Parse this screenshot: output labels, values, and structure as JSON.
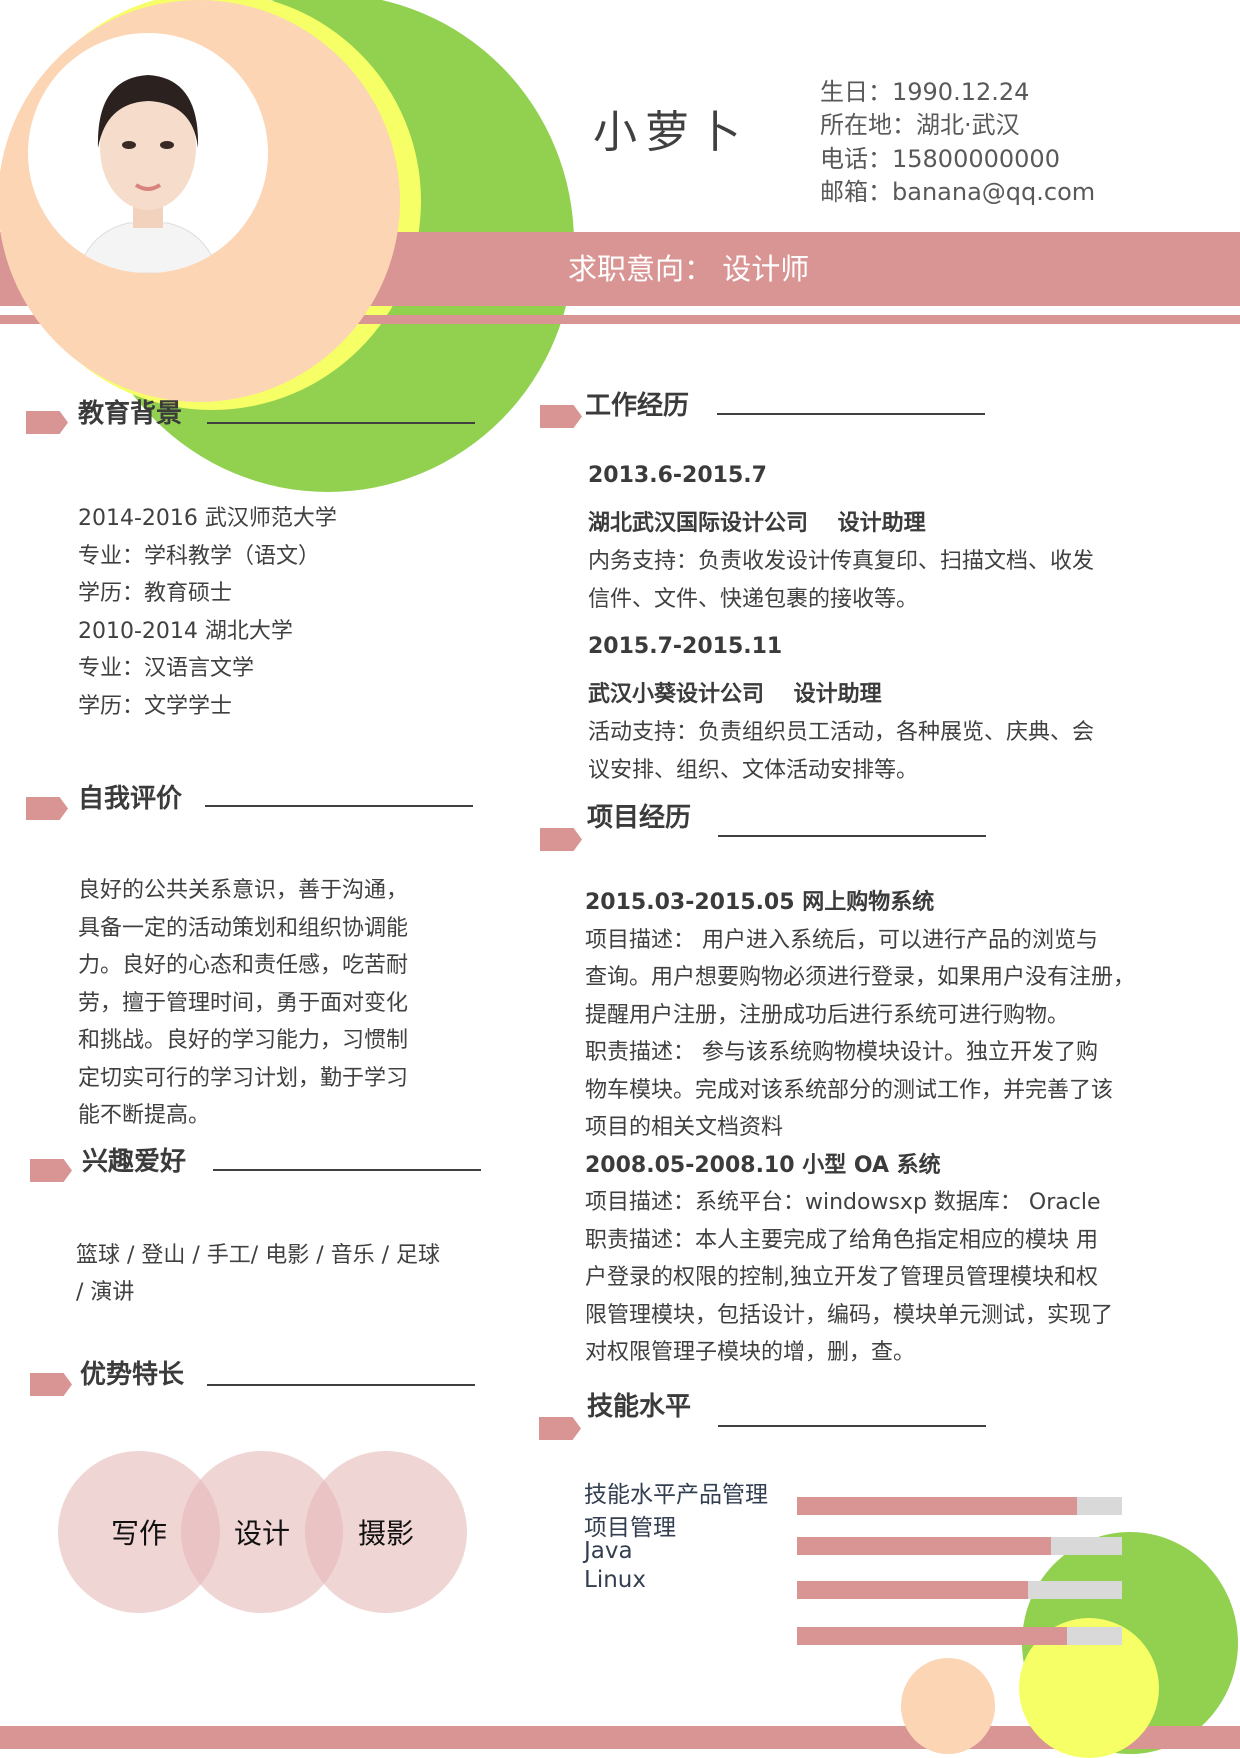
{
  "colors": {
    "accent": "#d99594",
    "green": "#92d050",
    "yellow": "#f6ff66",
    "peach": "#fcd5b4",
    "bar_bg": "#d9d9d9"
  },
  "header": {
    "name": "小萝卜",
    "info": [
      "生日：1990.12.24",
      "所在地：湖北·武汉",
      "电话：15800000000",
      "邮箱：banana@qq.com"
    ],
    "objective": "求职意向： 设计师"
  },
  "education": {
    "title": "教育背景",
    "lines": [
      "2014-2016 武汉师范大学",
      "专业：学科教学（语文）",
      "学历：教育硕士",
      "2010-2014 湖北大学",
      "专业：汉语言文学",
      "学历：文学学士"
    ]
  },
  "self_eval": {
    "title": "自我评价",
    "lines": [
      "良好的公共关系意识，善于沟通，",
      "具备一定的活动策划和组织协调能",
      "力。良好的心态和责任感，吃苦耐",
      "劳，擅于管理时间，勇于面对变化",
      "和挑战。良好的学习能力，习惯制",
      "定切实可行的学习计划，勤于学习",
      "能不断提高。"
    ]
  },
  "hobbies": {
    "title": "兴趣爱好",
    "lines": [
      "篮球 / 登山 / 手工/ 电影 / 音乐 / 足球",
      "/ 演讲"
    ]
  },
  "strengths": {
    "title": "优势特长",
    "items": [
      "写作",
      "设计",
      "摄影"
    ]
  },
  "work": {
    "title": "工作经历",
    "jobs": [
      {
        "period": "2013.6-2015.7",
        "company": "湖北武汉国际设计公司　 设计助理",
        "desc": [
          "内务支持：负责收发设计传真复印、扫描文档、收发",
          "信件、文件、快递包裹的接收等。"
        ]
      },
      {
        "period": "2015.7-2015.11",
        "company": "武汉小葵设计公司　 设计助理",
        "desc": [
          "活动支持：负责组织员工活动，各种展览、庆典、会",
          "议安排、组织、文体活动安排等。"
        ]
      }
    ]
  },
  "projects": {
    "title": "项目经历",
    "lines": [
      {
        "text": "2015.03-2015.05 网上购物系统",
        "bold": true
      },
      {
        "text": "项目描述： 用户进入系统后，可以进行产品的浏览与"
      },
      {
        "text": "查询。用户想要购物必须进行登录，如果用户没有注册，"
      },
      {
        "text": "提醒用户注册，注册成功后进行系统可进行购物。"
      },
      {
        "text": "职责描述： 参与该系统购物模块设计。独立开发了购"
      },
      {
        "text": "物车模块。完成对该系统部分的测试工作，并完善了该"
      },
      {
        "text": "项目的相关文档资料"
      },
      {
        "text": "2008.05-2008.10 小型 OA 系统",
        "bold": true
      },
      {
        "text": "项目描述：系统平台：windowsxp 数据库： Oracle"
      },
      {
        "text": "职责描述：本人主要完成了给角色指定相应的模块 用"
      },
      {
        "text": "户登录的权限的控制,独立开发了管理员管理模块和权"
      },
      {
        "text": "限管理模块，包括设计，编码，模块单元测试，实现了"
      },
      {
        "text": "对权限管理子模块的增，删，查。"
      }
    ]
  },
  "skills": {
    "title": "技能水平",
    "labels": [
      "技能水平产品管理",
      "项目管理",
      "Java",
      "Linux"
    ],
    "levels": [
      86,
      78,
      71,
      83
    ]
  }
}
